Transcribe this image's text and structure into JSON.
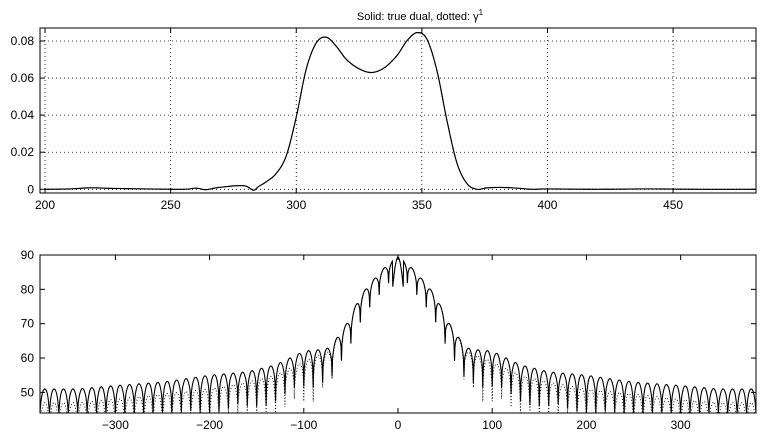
{
  "chart_data": [
    {
      "type": "line",
      "title_prefix": "Solid: true dual, dotted: ",
      "title_symbol": "γ",
      "title_superscript": "1",
      "xlim": [
        198,
        483
      ],
      "ylim": [
        -0.002,
        0.087
      ],
      "x_ticks": [
        200,
        250,
        300,
        350,
        400,
        450
      ],
      "x_tick_labels": [
        "200",
        "250",
        "300",
        "350",
        "400",
        "450"
      ],
      "y_ticks": [
        0,
        0.02,
        0.04,
        0.06,
        0.08
      ],
      "y_tick_labels": [
        "0",
        "0.02",
        "0.04",
        "0.06",
        "0.08"
      ],
      "grid": true,
      "series": [
        {
          "style": "solid",
          "x": [
            200,
            210,
            218,
            226,
            240,
            255,
            260,
            264,
            268,
            272,
            276,
            280,
            283,
            285,
            288,
            292,
            296,
            300,
            304,
            308,
            312,
            316,
            320,
            325,
            330,
            335,
            340,
            344,
            348,
            352,
            356,
            360,
            364,
            368,
            372,
            376,
            382,
            388,
            394,
            400,
            420,
            440,
            460,
            483
          ],
          "y": [
            0.0,
            0.0002,
            0.0008,
            0.0005,
            0.0002,
            0.0,
            0.0006,
            -0.0002,
            0.0008,
            0.0014,
            0.0019,
            0.0017,
            -0.0005,
            0.0015,
            0.004,
            0.0085,
            0.018,
            0.039,
            0.065,
            0.079,
            0.082,
            0.077,
            0.07,
            0.065,
            0.063,
            0.0655,
            0.072,
            0.08,
            0.0845,
            0.081,
            0.064,
            0.037,
            0.014,
            0.003,
            0.0,
            0.0008,
            0.001,
            0.0006,
            0.0,
            0.0002,
            0.0,
            0.0002,
            0.0,
            0.0
          ]
        },
        {
          "style": "dotted",
          "x": [
            200,
            210,
            218,
            226,
            240,
            255,
            260,
            264,
            268,
            272,
            276,
            280,
            283,
            285,
            288,
            292,
            296,
            300,
            304,
            308,
            312,
            316,
            320,
            325,
            330,
            335,
            340,
            344,
            348,
            352,
            356,
            360,
            364,
            368,
            372,
            376,
            382,
            388,
            394,
            400,
            420,
            440,
            460,
            483
          ],
          "y": [
            0.0,
            0.0002,
            0.0008,
            0.0005,
            0.0002,
            0.0,
            0.0006,
            -0.0002,
            0.0008,
            0.0014,
            0.0019,
            0.0017,
            -0.0005,
            0.0015,
            0.004,
            0.0085,
            0.018,
            0.039,
            0.065,
            0.079,
            0.082,
            0.077,
            0.07,
            0.065,
            0.063,
            0.0655,
            0.072,
            0.08,
            0.0845,
            0.081,
            0.064,
            0.037,
            0.014,
            0.003,
            0.0,
            0.0008,
            0.001,
            0.0006,
            0.0,
            0.0002,
            0.0,
            0.0002,
            0.0,
            0.0
          ]
        }
      ]
    },
    {
      "type": "line",
      "xlim": [
        -380,
        380
      ],
      "ylim": [
        44,
        90
      ],
      "x_ticks": [
        -300,
        -200,
        -100,
        0,
        100,
        200,
        300
      ],
      "x_tick_labels": [
        "−300",
        "−200",
        "−100",
        "0",
        "100",
        "200",
        "300"
      ],
      "y_ticks": [
        50,
        60,
        70,
        80,
        90
      ],
      "y_tick_labels": [
        "50",
        "60",
        "70",
        "80",
        "90"
      ],
      "grid": false,
      "main_lobe_peak": [
        0,
        89.5
      ],
      "series": [
        {
          "style": "solid",
          "envelope_x": [
            0,
            12,
            22,
            32,
            42,
            52,
            62,
            72,
            82,
            100,
            130,
            160,
            200,
            250,
            300,
            340,
            380
          ],
          "envelope_y": [
            89.5,
            87,
            84,
            81,
            77,
            71,
            67,
            63,
            62.5,
            62,
            58,
            56,
            55,
            53,
            52,
            51,
            51
          ],
          "lobe_spacing": 10,
          "floor": 44
        },
        {
          "style": "dotted",
          "envelope_x": [
            0,
            12,
            22,
            32,
            42,
            52,
            62,
            72,
            82,
            100,
            130,
            160,
            200,
            250,
            300,
            340,
            380
          ],
          "envelope_y": [
            89.5,
            87,
            84,
            81,
            77,
            71,
            67,
            62,
            61,
            59,
            55,
            53,
            51,
            49.5,
            48,
            47,
            47
          ],
          "lobe_spacing": 10,
          "floor": 44
        }
      ]
    }
  ]
}
